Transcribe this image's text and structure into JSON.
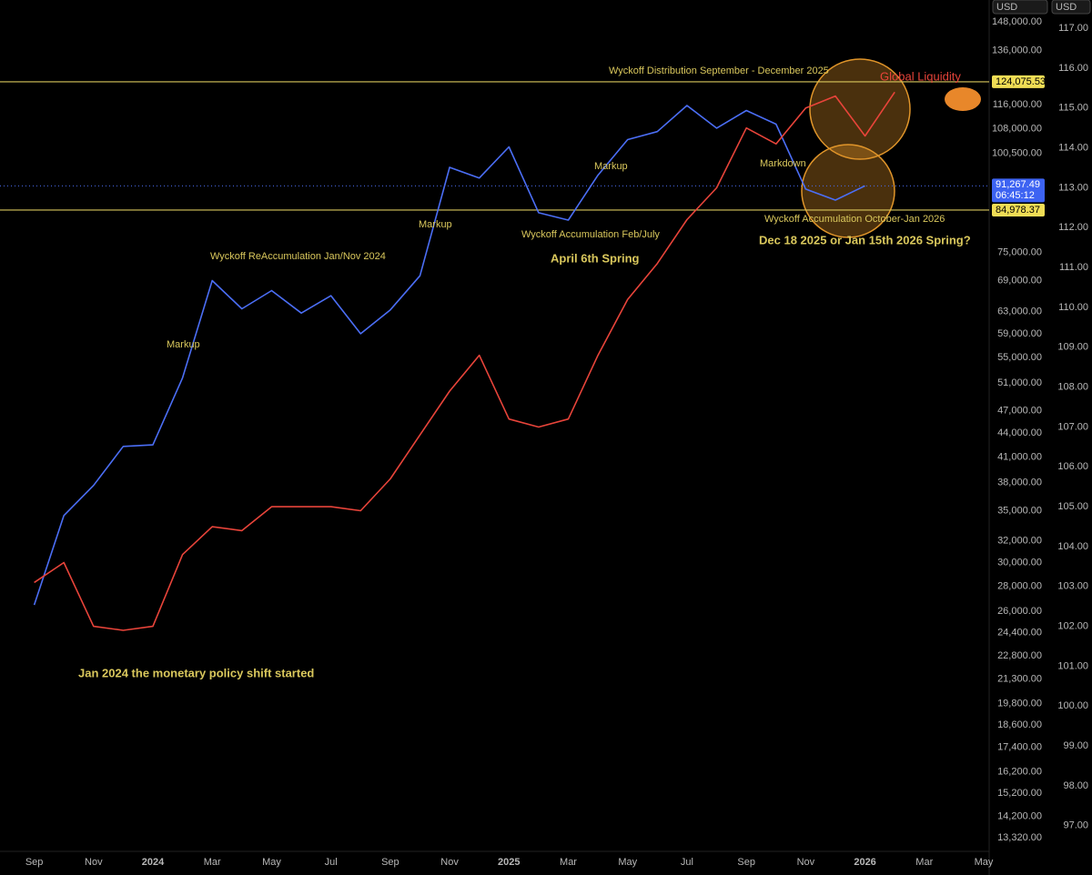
{
  "chart_data": {
    "type": "line",
    "currency": "USD",
    "currency2": "USD",
    "x": [
      "2023-09",
      "2023-10",
      "2023-11",
      "2023-12",
      "2024-01",
      "2024-02",
      "2024-03",
      "2024-04",
      "2024-05",
      "2024-06",
      "2024-07",
      "2024-08",
      "2024-09",
      "2024-10",
      "2024-11",
      "2024-12",
      "2025-01",
      "2025-02",
      "2025-03",
      "2025-04",
      "2025-05",
      "2025-06",
      "2025-07",
      "2025-08",
      "2025-09",
      "2025-10",
      "2025-11",
      "2025-12",
      "2026-01",
      "2026-02"
    ],
    "series": [
      {
        "color": "#4b6ef5",
        "values": [
          26500,
          34500,
          37700,
          42300,
          42500,
          51800,
          69000,
          63500,
          67000,
          62700,
          66000,
          59000,
          63300,
          70000,
          96400,
          93400,
          102400,
          84300,
          82500,
          94200,
          104600,
          107100,
          115700,
          108200,
          114000,
          109500,
          90400,
          87500,
          91267.49,
          null
        ]
      },
      {
        "name": "Global Liquidity",
        "color": "#e8443a",
        "axis": "y2",
        "values": [
          103.1,
          103.6,
          102.0,
          101.9,
          102.0,
          103.8,
          104.5,
          104.4,
          105.0,
          105.0,
          105.0,
          104.9,
          105.7,
          106.8,
          107.9,
          108.8,
          107.2,
          107.0,
          107.2,
          108.8,
          110.2,
          111.1,
          112.2,
          113.0,
          114.5,
          114.1,
          115.0,
          115.3,
          114.3,
          115.4
        ]
      }
    ],
    "log_scale": true,
    "xlim": [
      "2023-08",
      "2026-05"
    ],
    "xticks": [
      {
        "value": "2023-09",
        "label": "Sep"
      },
      {
        "value": "2023-11",
        "label": "Nov"
      },
      {
        "value": "2024-01",
        "label": "2024"
      },
      {
        "value": "2024-03",
        "label": "Mar"
      },
      {
        "value": "2024-05",
        "label": "May"
      },
      {
        "value": "2024-07",
        "label": "Jul"
      },
      {
        "value": "2024-09",
        "label": "Sep"
      },
      {
        "value": "2024-11",
        "label": "Nov"
      },
      {
        "value": "2025-01",
        "label": "2025"
      },
      {
        "value": "2025-03",
        "label": "Mar"
      },
      {
        "value": "2025-05",
        "label": "May"
      },
      {
        "value": "2025-07",
        "label": "Jul"
      },
      {
        "value": "2025-09",
        "label": "Sep"
      },
      {
        "value": "2025-11",
        "label": "Nov"
      },
      {
        "value": "2026-01",
        "label": "2026"
      },
      {
        "value": "2026-03",
        "label": "Mar"
      },
      {
        "value": "2026-05",
        "label": "May"
      }
    ],
    "ylim": [
      12840,
      157950
    ],
    "yticks": [
      {
        "value": 148000,
        "label": "148,000.00"
      },
      {
        "value": 136000,
        "label": "136,000.00"
      },
      {
        "value": 116000,
        "label": "116,000.00"
      },
      {
        "value": 108000,
        "label": "108,000.00"
      },
      {
        "value": 100500,
        "label": "100,500.00"
      },
      {
        "value": 75000,
        "label": "75,000.00"
      },
      {
        "value": 69000,
        "label": "69,000.00"
      },
      {
        "value": 63000,
        "label": "63,000.00"
      },
      {
        "value": 59000,
        "label": "59,000.00"
      },
      {
        "value": 55000,
        "label": "55,000.00"
      },
      {
        "value": 51000,
        "label": "51,000.00"
      },
      {
        "value": 47000,
        "label": "47,000.00"
      },
      {
        "value": 44000,
        "label": "44,000.00"
      },
      {
        "value": 41000,
        "label": "41,000.00"
      },
      {
        "value": 38000,
        "label": "38,000.00"
      },
      {
        "value": 35000,
        "label": "35,000.00"
      },
      {
        "value": 32000,
        "label": "32,000.00"
      },
      {
        "value": 30000,
        "label": "30,000.00"
      },
      {
        "value": 28000,
        "label": "28,000.00"
      },
      {
        "value": 26000,
        "label": "26,000.00"
      },
      {
        "value": 24400,
        "label": "24,400.00"
      },
      {
        "value": 22800,
        "label": "22,800.00"
      },
      {
        "value": 21300,
        "label": "21,300.00"
      },
      {
        "value": 19800,
        "label": "19,800.00"
      },
      {
        "value": 18600,
        "label": "18,600.00"
      },
      {
        "value": 17400,
        "label": "17,400.00"
      },
      {
        "value": 16200,
        "label": "16,200.00"
      },
      {
        "value": 15200,
        "label": "15,200.00"
      },
      {
        "value": 14200,
        "label": "14,200.00"
      },
      {
        "value": 13320,
        "label": "13,320.00"
      }
    ],
    "y2lim": [
      96.38,
      117.71
    ],
    "y2ticks": [
      {
        "value": 117,
        "label": "117.00"
      },
      {
        "value": 116,
        "label": "116.00"
      },
      {
        "value": 115,
        "label": "115.00"
      },
      {
        "value": 114,
        "label": "114.00"
      },
      {
        "value": 113,
        "label": "113.00"
      },
      {
        "value": 112,
        "label": "112.00"
      },
      {
        "value": 111,
        "label": "111.00"
      },
      {
        "value": 110,
        "label": "110.00"
      },
      {
        "value": 109,
        "label": "109.00"
      },
      {
        "value": 108,
        "label": "108.00"
      },
      {
        "value": 107,
        "label": "107.00"
      },
      {
        "value": 106,
        "label": "106.00"
      },
      {
        "value": 105,
        "label": "105.00"
      },
      {
        "value": 104,
        "label": "104.00"
      },
      {
        "value": 103,
        "label": "103.00"
      },
      {
        "value": 102,
        "label": "102.00"
      },
      {
        "value": 101,
        "label": "101.00"
      },
      {
        "value": 100,
        "label": "100.00"
      },
      {
        "value": 99,
        "label": "99.00"
      },
      {
        "value": 98,
        "label": "98.00"
      },
      {
        "value": 97,
        "label": "97.00"
      }
    ],
    "levels": [
      {
        "value": 124075.53,
        "label": "124,075.53"
      },
      {
        "value": 84978.37,
        "label": "84,978.37"
      }
    ],
    "current_price": {
      "value": 91267.49,
      "label": "91,267.49"
    },
    "countdown": "06:45:12",
    "annotations": [
      "Wyckoff Distribution September - December  2025",
      "Markdown",
      "Markup",
      "Wyckoff Accumulation October-Jan 2026",
      "Dec 18 2025 or Jan 15th 2026 Spring?",
      "Markup",
      "Wyckoff Accumulation Feb/July",
      "April 6th Spring",
      "Wyckoff ReAccumulation Jan/Nov 2024",
      "Markup",
      "Jan 2024 the monetary policy shift started"
    ]
  }
}
